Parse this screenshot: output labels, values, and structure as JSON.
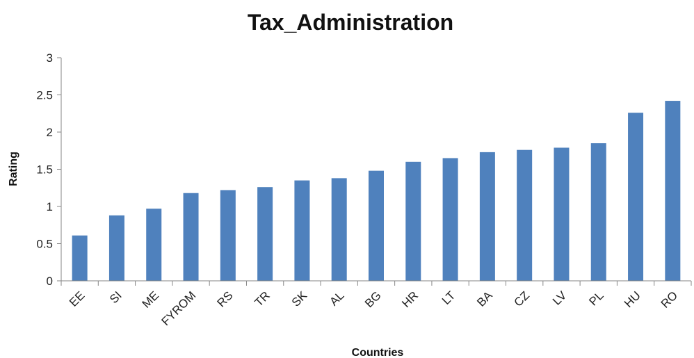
{
  "chart_data": {
    "type": "bar",
    "title": "Tax_Administration",
    "xlabel": "Countries",
    "ylabel": "Rating",
    "categories": [
      "EE",
      "SI",
      "ME",
      "FYROM",
      "RS",
      "TR",
      "SK",
      "AL",
      "BG",
      "HR",
      "LT",
      "BA",
      "CZ",
      "LV",
      "PL",
      "HU",
      "RO"
    ],
    "values": [
      0.61,
      0.88,
      0.97,
      1.18,
      1.22,
      1.26,
      1.35,
      1.38,
      1.48,
      1.6,
      1.65,
      1.73,
      1.76,
      1.79,
      1.85,
      2.26,
      2.42
    ],
    "ylim": [
      0,
      3
    ],
    "yticks": [
      "0",
      "0.5",
      "1",
      "1.5",
      "2",
      "2.5",
      "3"
    ],
    "grid": false,
    "legend": "none",
    "bar_color": "#4F81BD",
    "axis_color": "#868686"
  }
}
